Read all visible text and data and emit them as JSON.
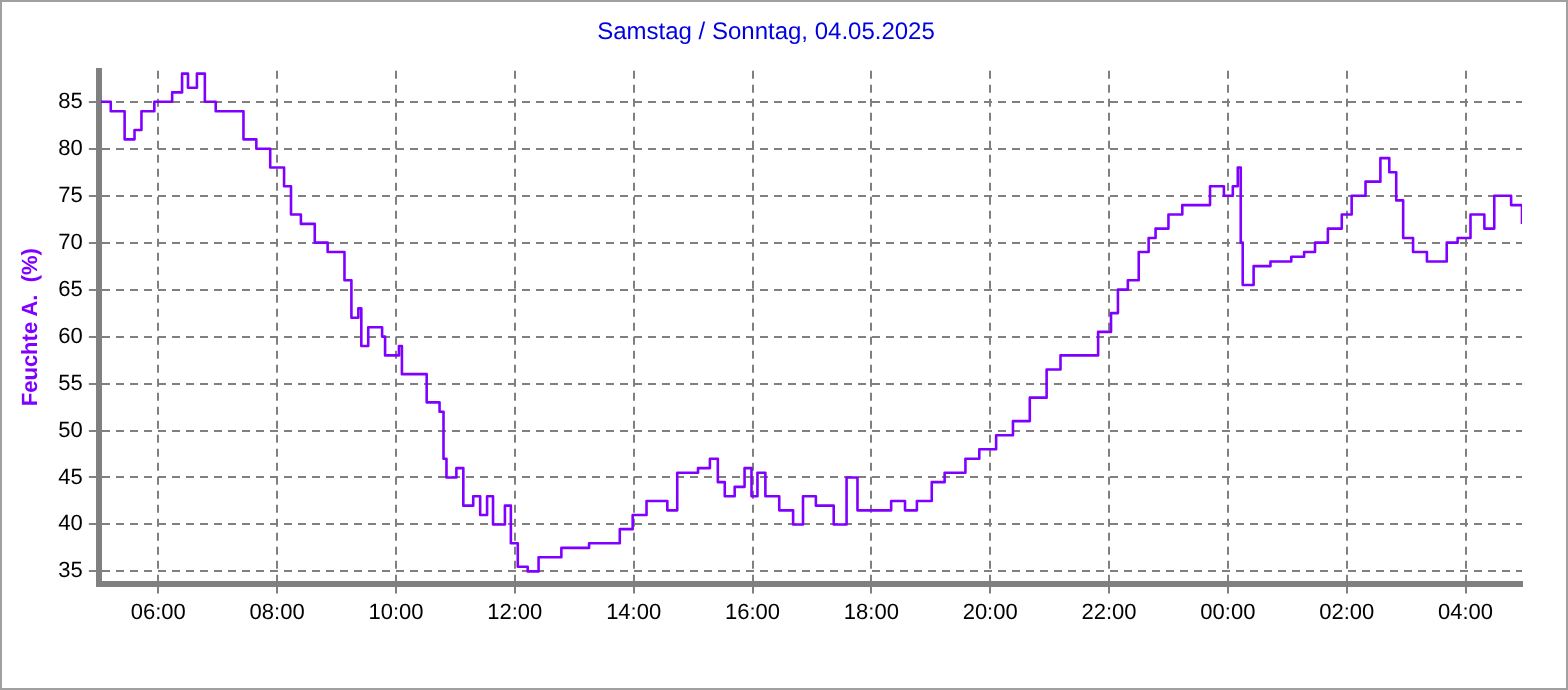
{
  "chart_data": {
    "type": "step",
    "title": "Samstag / Sonntag, 04.05.2025",
    "ylabel": "Feuchte A.  (%)",
    "xlim": [
      "2025-05-03T05:00",
      "2025-05-04T04:57"
    ],
    "ylim": [
      33.7,
      88.3
    ],
    "xticks": [
      {
        "value": "2025-05-03T06:00",
        "label": "06:00"
      },
      {
        "value": "2025-05-03T08:00",
        "label": "08:00"
      },
      {
        "value": "2025-05-03T10:00",
        "label": "10:00"
      },
      {
        "value": "2025-05-03T12:00",
        "label": "12:00"
      },
      {
        "value": "2025-05-03T14:00",
        "label": "14:00"
      },
      {
        "value": "2025-05-03T16:00",
        "label": "16:00"
      },
      {
        "value": "2025-05-03T18:00",
        "label": "18:00"
      },
      {
        "value": "2025-05-03T20:00",
        "label": "20:00"
      },
      {
        "value": "2025-05-03T22:00",
        "label": "22:00"
      },
      {
        "value": "2025-05-04T00:00",
        "label": "00:00"
      },
      {
        "value": "2025-05-04T02:00",
        "label": "02:00"
      },
      {
        "value": "2025-05-04T04:00",
        "label": "04:00"
      }
    ],
    "yticks": [
      35,
      40,
      45,
      50,
      55,
      60,
      65,
      70,
      75,
      80,
      85
    ],
    "grid": true,
    "line_style": "solid",
    "series": [
      {
        "color": "#8000ff",
        "x": [
          "2025-05-03T05:02",
          "2025-05-03T05:12",
          "2025-05-03T05:26",
          "2025-05-03T05:36",
          "2025-05-03T05:43",
          "2025-05-03T05:56",
          "2025-05-03T06:14",
          "2025-05-03T06:24",
          "2025-05-03T06:30",
          "2025-05-03T06:39",
          "2025-05-03T06:47",
          "2025-05-03T06:58",
          "2025-05-03T07:16",
          "2025-05-03T07:26",
          "2025-05-03T07:39",
          "2025-05-03T07:53",
          "2025-05-03T08:07",
          "2025-05-03T08:14",
          "2025-05-03T08:24",
          "2025-05-03T08:38",
          "2025-05-03T08:51",
          "2025-05-03T09:05",
          "2025-05-03T09:08",
          "2025-05-03T09:15",
          "2025-05-03T09:22",
          "2025-05-03T09:25",
          "2025-05-03T09:32",
          "2025-05-03T09:46",
          "2025-05-03T09:49",
          "2025-05-03T10:03",
          "2025-05-03T10:06",
          "2025-05-03T10:24",
          "2025-05-03T10:31",
          "2025-05-03T10:44",
          "2025-05-03T10:48",
          "2025-05-03T10:51",
          "2025-05-03T11:01",
          "2025-05-03T11:08",
          "2025-05-03T11:18",
          "2025-05-03T11:25",
          "2025-05-03T11:32",
          "2025-05-03T11:38",
          "2025-05-03T11:50",
          "2025-05-03T11:56",
          "2025-05-03T12:03",
          "2025-05-03T12:13",
          "2025-05-03T12:24",
          "2025-05-03T12:47",
          "2025-05-03T13:15",
          "2025-05-03T13:46",
          "2025-05-03T13:59",
          "2025-05-03T14:13",
          "2025-05-03T14:34",
          "2025-05-03T14:44",
          "2025-05-03T15:05",
          "2025-05-03T15:17",
          "2025-05-03T15:25",
          "2025-05-03T15:32",
          "2025-05-03T15:42",
          "2025-05-03T15:52",
          "2025-05-03T15:59",
          "2025-05-03T16:05",
          "2025-05-03T16:13",
          "2025-05-03T16:27",
          "2025-05-03T16:41",
          "2025-05-03T16:51",
          "2025-05-03T17:04",
          "2025-05-03T17:22",
          "2025-05-03T17:35",
          "2025-05-03T17:46",
          "2025-05-03T18:06",
          "2025-05-03T18:20",
          "2025-05-03T18:34",
          "2025-05-03T18:46",
          "2025-05-03T19:01",
          "2025-05-03T19:14",
          "2025-05-03T19:35",
          "2025-05-03T19:49",
          "2025-05-03T20:06",
          "2025-05-03T20:23",
          "2025-05-03T20:40",
          "2025-05-03T20:57",
          "2025-05-03T21:11",
          "2025-05-03T21:31",
          "2025-05-03T21:49",
          "2025-05-03T22:02",
          "2025-05-03T22:09",
          "2025-05-03T22:19",
          "2025-05-03T22:30",
          "2025-05-03T22:40",
          "2025-05-03T22:47",
          "2025-05-03T23:00",
          "2025-05-03T23:14",
          "2025-05-03T23:35",
          "2025-05-03T23:42",
          "2025-05-03T23:56",
          "2025-05-04T00:05",
          "2025-05-04T00:10",
          "2025-05-04T00:13",
          "2025-05-04T00:15",
          "2025-05-04T00:26",
          "2025-05-04T00:43",
          "2025-05-04T01:04",
          "2025-05-04T01:17",
          "2025-05-04T01:28",
          "2025-05-04T01:41",
          "2025-05-04T01:55",
          "2025-05-04T02:05",
          "2025-05-04T02:19",
          "2025-05-04T02:34",
          "2025-05-04T02:43",
          "2025-05-04T02:50",
          "2025-05-04T02:57",
          "2025-05-04T03:07",
          "2025-05-04T03:21",
          "2025-05-04T03:35",
          "2025-05-04T03:41",
          "2025-05-04T03:52",
          "2025-05-04T04:05",
          "2025-05-04T04:19",
          "2025-05-04T04:29",
          "2025-05-04T04:46",
          "2025-05-04T04:57"
        ],
        "values": [
          85,
          84,
          81,
          82,
          84,
          85,
          86,
          88,
          86.5,
          88,
          85,
          84,
          84,
          81,
          80,
          78,
          76,
          73,
          72,
          70,
          69,
          69,
          66,
          62,
          63,
          59,
          61,
          60,
          58,
          59,
          56,
          56,
          53,
          52,
          47,
          45,
          46,
          42,
          43,
          41,
          43,
          40,
          42,
          38,
          35.5,
          35,
          36.5,
          37.5,
          38,
          39.5,
          41,
          42.5,
          41.5,
          45.5,
          46,
          47,
          44.5,
          43,
          44,
          46,
          43,
          45.5,
          43,
          41.5,
          40,
          43,
          42,
          40,
          45,
          41.5,
          41.5,
          42.5,
          41.5,
          42.5,
          44.5,
          45.5,
          47,
          48,
          49.5,
          51,
          53.5,
          56.5,
          58,
          58,
          60.5,
          62.5,
          65,
          66,
          69,
          70.5,
          71.5,
          73,
          74,
          74,
          76,
          75,
          76,
          78,
          70,
          65.5,
          67.5,
          68,
          68.5,
          69,
          70,
          71.5,
          73,
          75,
          76.5,
          79,
          77.5,
          74.5,
          70.5,
          69,
          68,
          68,
          70,
          70.5,
          73,
          71.5,
          75,
          74,
          72
        ]
      }
    ]
  }
}
